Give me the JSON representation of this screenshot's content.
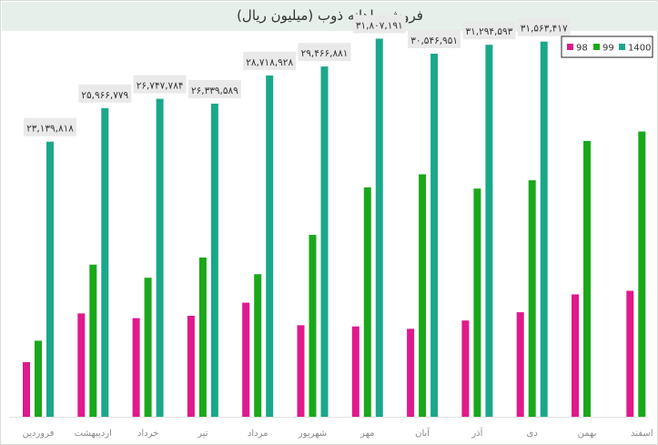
{
  "chart_data": {
    "type": "bar",
    "title": "فروش ماهانه ذوب (میلیون ریال)",
    "xlabel": "",
    "ylabel": "",
    "ylim": [
      0,
      32000000
    ],
    "grid": false,
    "legend_position": "top-right",
    "categories": [
      "فروردین",
      "اردیبهشت",
      "خرداد",
      "تیر",
      "مرداد",
      "شهریور",
      "مهر",
      "آبان",
      "آذر",
      "دی",
      "بهمن",
      "اسفند"
    ],
    "series": [
      {
        "name": "98",
        "color": "#e0198c",
        "values": [
          4600000,
          8700000,
          8300000,
          8500000,
          9600000,
          7700000,
          7600000,
          7400000,
          8100000,
          8800000,
          10300000,
          10600000
        ]
      },
      {
        "name": "99",
        "color": "#1aa81a",
        "values": [
          6400000,
          12800000,
          11700000,
          13400000,
          12000000,
          15300000,
          19300000,
          20400000,
          19200000,
          19900000,
          23200000,
          24000000
        ]
      },
      {
        "name": "1400",
        "color": "#1aa88a",
        "values": [
          23139818,
          25966779,
          26747784,
          26339589,
          28718928,
          29466881,
          31807191,
          30546951,
          31294593,
          31563417,
          null,
          null
        ]
      }
    ],
    "data_labels": [
      "۲۳,۱۳۹,۸۱۸",
      "۲۵,۹۶۶,۷۷۹",
      "۲۶,۷۴۷,۷۸۴",
      "۲۶,۳۳۹,۵۸۹",
      "۲۸,۷۱۸,۹۲۸",
      "۲۹,۴۶۶,۸۸۱",
      "۳۱,۸۰۷,۱۹۱",
      "۳۰,۵۴۶,۹۵۱",
      "۳۱,۲۹۴,۵۹۳",
      "۳۱,۵۶۳,۴۱۷",
      null,
      null
    ]
  }
}
